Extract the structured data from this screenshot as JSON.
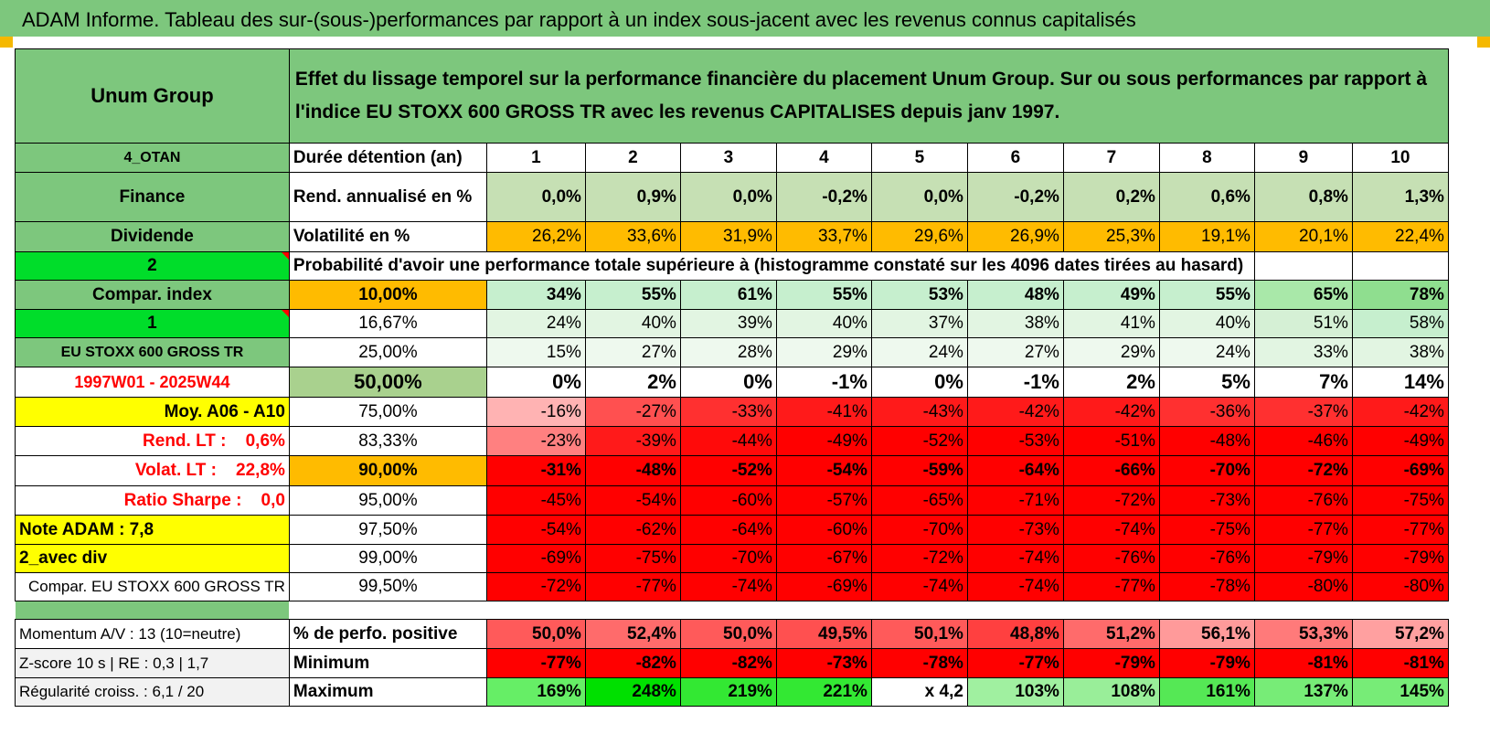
{
  "title": "ADAM Informe. Tableau des sur-(sous-)performances par rapport à un index sous-jacent avec les revenus connus capitalisés",
  "company": "Unum Group",
  "header_text": "Effet du lissage temporel sur la performance financière du placement Unum Group. Sur ou sous performances par rapport à l'indice EU STOXX 600 GROSS TR avec les revenus CAPITALISES depuis janv 1997.",
  "years": [
    "1",
    "2",
    "3",
    "4",
    "5",
    "6",
    "7",
    "8",
    "9",
    "10"
  ],
  "rows_top": [
    {
      "label": "4_OTAN",
      "desc": "Durée détention (an)"
    },
    {
      "label": "Finance",
      "desc": "Rend. annualisé en %",
      "values": [
        "0,0%",
        "0,9%",
        "0,0%",
        "-0,2%",
        "0,0%",
        "-0,2%",
        "0,2%",
        "0,6%",
        "0,8%",
        "1,3%"
      ]
    },
    {
      "label": "Dividende",
      "desc": "Volatilité en %",
      "values": [
        "26,2%",
        "33,6%",
        "31,9%",
        "33,7%",
        "29,6%",
        "26,9%",
        "25,3%",
        "19,1%",
        "20,1%",
        "22,4%"
      ]
    }
  ],
  "prob_row": {
    "label": "2",
    "text": "Probabilité d'avoir une performance totale supérieure à (histogramme constaté sur les 4096 dates tirées au hasard)"
  },
  "prob_rows": [
    {
      "label": "Compar. index",
      "threshold": "10,00%",
      "values": [
        "34%",
        "55%",
        "61%",
        "55%",
        "53%",
        "48%",
        "49%",
        "55%",
        "65%",
        "78%"
      ]
    },
    {
      "label": "1",
      "threshold": "16,67%",
      "values": [
        "24%",
        "40%",
        "39%",
        "40%",
        "37%",
        "38%",
        "41%",
        "40%",
        "51%",
        "58%"
      ]
    },
    {
      "label": "EU STOXX 600 GROSS TR",
      "threshold": "25,00%",
      "values": [
        "15%",
        "27%",
        "28%",
        "29%",
        "24%",
        "27%",
        "29%",
        "24%",
        "33%",
        "38%"
      ]
    },
    {
      "label": "1997W01 - 2025W44",
      "threshold": "50,00%",
      "values": [
        "0%",
        "2%",
        "0%",
        "-1%",
        "0%",
        "-1%",
        "2%",
        "5%",
        "7%",
        "14%"
      ]
    },
    {
      "label": "Moy. A06 - A10",
      "threshold": "75,00%",
      "values": [
        "-16%",
        "-27%",
        "-33%",
        "-41%",
        "-43%",
        "-42%",
        "-42%",
        "-36%",
        "-37%",
        "-42%"
      ]
    },
    {
      "label": "Rend. LT :    0,6%",
      "threshold": "83,33%",
      "values": [
        "-23%",
        "-39%",
        "-44%",
        "-49%",
        "-52%",
        "-53%",
        "-51%",
        "-48%",
        "-46%",
        "-49%"
      ]
    },
    {
      "label": "Volat. LT :    22,8%",
      "threshold": "90,00%",
      "values": [
        "-31%",
        "-48%",
        "-52%",
        "-54%",
        "-59%",
        "-64%",
        "-66%",
        "-70%",
        "-72%",
        "-69%"
      ]
    },
    {
      "label": "Ratio Sharpe :    0,0",
      "threshold": "95,00%",
      "values": [
        "-45%",
        "-54%",
        "-60%",
        "-57%",
        "-65%",
        "-71%",
        "-72%",
        "-73%",
        "-76%",
        "-75%"
      ]
    },
    {
      "label": "Note ADAM : 7,8",
      "threshold": "97,50%",
      "values": [
        "-54%",
        "-62%",
        "-64%",
        "-60%",
        "-70%",
        "-73%",
        "-74%",
        "-75%",
        "-77%",
        "-77%"
      ]
    },
    {
      "label": "2_avec div",
      "threshold": "99,00%",
      "values": [
        "-69%",
        "-75%",
        "-70%",
        "-67%",
        "-72%",
        "-74%",
        "-76%",
        "-76%",
        "-79%",
        "-79%"
      ]
    },
    {
      "label": "Compar. EU STOXX 600 GROSS TR",
      "threshold": "99,50%",
      "values": [
        "-72%",
        "-77%",
        "-74%",
        "-69%",
        "-74%",
        "-74%",
        "-77%",
        "-78%",
        "-80%",
        "-80%"
      ]
    }
  ],
  "stats_rows": [
    {
      "label": "Momentum A/V : 13 (10=neutre)",
      "desc": "% de perfo. positive",
      "values": [
        "50,0%",
        "52,4%",
        "50,0%",
        "49,5%",
        "50,1%",
        "48,8%",
        "51,2%",
        "56,1%",
        "53,3%",
        "57,2%"
      ]
    },
    {
      "label": "Z-score 10 s | RE : 0,3 | 1,7",
      "desc": "Minimum",
      "values": [
        "-77%",
        "-82%",
        "-82%",
        "-73%",
        "-78%",
        "-77%",
        "-79%",
        "-79%",
        "-81%",
        "-81%"
      ]
    },
    {
      "label": "Régularité croiss. : 6,1 / 20",
      "desc": "Maximum",
      "values": [
        "169%",
        "248%",
        "219%",
        "221%",
        "x 4,2",
        "103%",
        "108%",
        "161%",
        "137%",
        "145%"
      ]
    }
  ]
}
